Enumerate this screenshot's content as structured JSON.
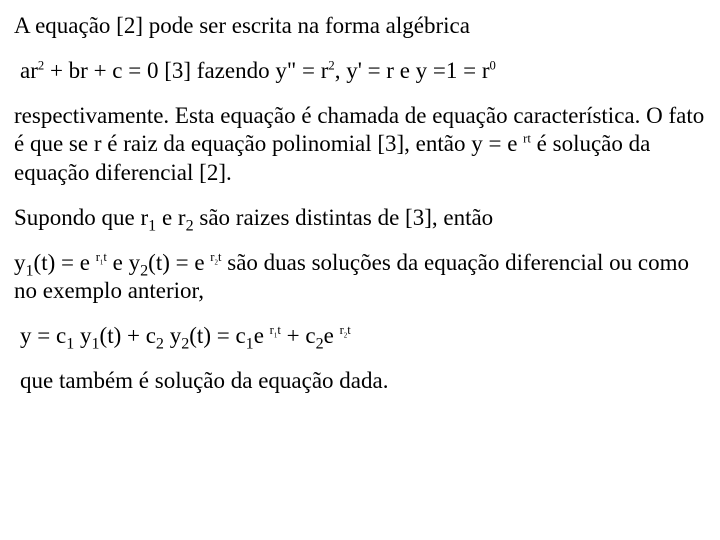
{
  "p1": {
    "text": "A equação [2] pode ser escrita na forma algébrica"
  },
  "p2": {
    "t1": "ar",
    "sup1": "2",
    "t2": " + br + c = 0   [3]    fazendo  y\" = r",
    "sup2": "2",
    "t3": ",  y' = r  e  y =1 = r",
    "sup3": "0"
  },
  "p3": {
    "t1": "respectivamente.  Esta equação é chamada de equação característica. O fato é que se  r é raiz da equação polinomial [3],  então  y = e ",
    "sup1": "rt",
    "t2": "     é solução da equação diferencial  [2]."
  },
  "p4": {
    "t1": "Supondo que r",
    "sub1": "1",
    "t2": "  e  r",
    "sub2": "2",
    "t3": "  são raizes distintas de [3],  então"
  },
  "p5": {
    "t1": " y",
    "sub1": "1",
    "t2": "(t) = e ",
    "sup1": "r",
    "sup1b": "1",
    "sup1c": "t",
    "t3": "    e     y",
    "sub2": "2",
    "t4": "(t) = e ",
    "sup2": "r",
    "sup2b": "2",
    "sup2c": "t",
    "t5": "  são duas soluções da equação diferencial  ou como no exemplo anterior,"
  },
  "p6": {
    "t1": " y = c",
    "sub1": "1",
    "t2": " y",
    "sub2": "1",
    "t3": "(t) + c",
    "sub3": "2",
    "t4": " y",
    "sub4": "2",
    "t5": "(t) =  c",
    "sub5": "1",
    "t6": "e ",
    "sup1": "r",
    "sup1b": "1",
    "sup1c": "t",
    "t7": "  + c",
    "sub6": "2",
    "t8": "e ",
    "sup2": "r",
    "sup2b": "2",
    "sup2c": "t"
  },
  "p7": {
    "text": " que  também é solução da equação dada."
  }
}
